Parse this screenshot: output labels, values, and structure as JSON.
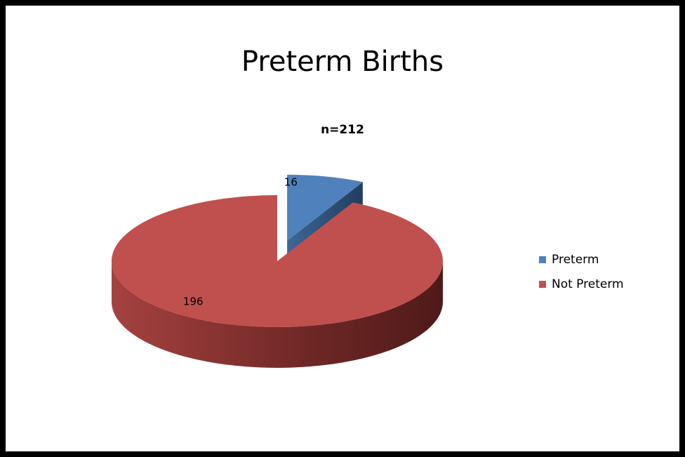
{
  "chart_data": {
    "type": "pie",
    "title": "Preterm Births",
    "subtitle": "n=212",
    "categories": [
      "Preterm",
      "Not Preterm"
    ],
    "values": [
      16,
      196
    ],
    "colors": [
      "#4f81bd",
      "#c0504d"
    ],
    "legend": "right",
    "exploded": [
      true,
      false
    ]
  }
}
